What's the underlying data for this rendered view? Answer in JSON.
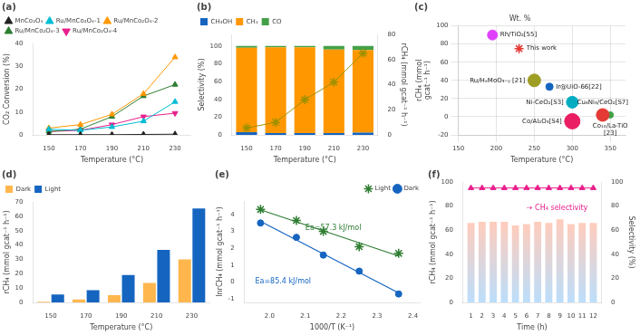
{
  "chart_data": [
    {
      "type": "line",
      "title": "(a)",
      "xlabel": "Temperature (°C)",
      "ylabel": "CO₂ Conversion (%)",
      "x": [
        150,
        170,
        190,
        210,
        230
      ],
      "series": [
        {
          "name": "MnCo₂O₄",
          "color": "#222222",
          "marker": "triangle",
          "values": [
            0.1,
            0.1,
            0.1,
            0.2,
            0.3
          ]
        },
        {
          "name": "Ru/MnCo₂O₄-1",
          "color": "#00bcd4",
          "marker": "triangle",
          "values": [
            2.5,
            2.0,
            3.5,
            6.0,
            14.5
          ]
        },
        {
          "name": "Ru/MnCo₂O₄-2",
          "color": "#ff9800",
          "marker": "triangle",
          "values": [
            3.0,
            4.5,
            9.0,
            18.0,
            34.0
          ]
        },
        {
          "name": "Ru/MnCo₂O₄-3",
          "color": "#2e7d32",
          "marker": "triangle",
          "values": [
            1.5,
            2.5,
            8.0,
            17.0,
            22.0
          ]
        },
        {
          "name": "Ru/MnCo₂O₄-4",
          "color": "#e91e8c",
          "marker": "triangle-down",
          "values": [
            1.5,
            2.0,
            4.5,
            8.0,
            9.5
          ]
        }
      ],
      "xlim": [
        140,
        240
      ],
      "xticks": [
        150,
        170,
        190,
        210,
        230
      ],
      "ylim": [
        0,
        40
      ],
      "yticks": [
        0,
        10,
        20,
        30,
        40
      ],
      "grid": false,
      "legend": "upper left"
    },
    {
      "type": "bar",
      "title": "(b)",
      "xlabel": "Temperature (°C)",
      "ylabel": "Selectivity (%)",
      "y2label": "rCH₄ (mmol gcat⁻¹ h⁻¹)",
      "categories": [
        150,
        170,
        190,
        210,
        230
      ],
      "series": [
        {
          "name": "CH₃OH",
          "color": "#1565c0",
          "values": [
            3.0,
            2.0,
            2.0,
            2.0,
            2.5
          ]
        },
        {
          "name": "CH₄",
          "color": "#ff9800",
          "values": [
            95.0,
            96.5,
            96.5,
            94.0,
            93.0
          ]
        },
        {
          "name": "CO",
          "color": "#43a047",
          "values": [
            2.0,
            1.5,
            1.5,
            4.0,
            4.5
          ]
        },
        {
          "type": "line",
          "axis": "y2",
          "color": "#9e9000",
          "marker": "star",
          "values": [
            5.5,
            10.0,
            28.0,
            42.0,
            65.0
          ]
        }
      ],
      "stacked": true,
      "ylim": [
        0,
        113
      ],
      "yticks": [
        0,
        20,
        40,
        60,
        80,
        100
      ],
      "y2lim": [
        0,
        80
      ],
      "y2ticks": [
        0,
        20,
        40,
        60,
        80
      ],
      "grid": false,
      "legend": "upper left"
    },
    {
      "type": "bubble",
      "title": "(c)",
      "subtitle": "Wt. %",
      "xlabel": "Temperature (°C)",
      "ylabel": "rCH₄ (mmol\ngcat⁻¹ h⁻¹)",
      "points": [
        {
          "label": "This work",
          "x": 230,
          "y": 75,
          "size": 10,
          "color": "#e53935",
          "marker": "star"
        },
        {
          "label": "Rh/TiO₂[55]",
          "x": 195,
          "y": 90,
          "size": 11,
          "color": "#e040fb",
          "marker": "circle"
        },
        {
          "label": "Ir@UiO-66[22]",
          "x": 270,
          "y": 33,
          "size": 8,
          "color": "#1565c0",
          "marker": "circle"
        },
        {
          "label": "Ru/HₓMoO₃₋ᵧ [21]",
          "x": 250,
          "y": 40,
          "size": 14,
          "color": "#9e9d24",
          "marker": "circle"
        },
        {
          "label": "Ni-CeO₂[S3]",
          "x": 300,
          "y": 16,
          "size": 13,
          "color": "#00acc1",
          "marker": "circle"
        },
        {
          "label": "Co₁₀/La-TiO\n[23]",
          "x": 350,
          "y": 2,
          "size": 7,
          "color": "#43a047",
          "marker": "circle"
        },
        {
          "label": "Cu₆Ni₃/CeO₂[S7]",
          "x": 340,
          "y": 2,
          "size": 14,
          "color": "#e53935",
          "marker": "circle"
        },
        {
          "label": "Co/Al₂O₃[S4]",
          "x": 300,
          "y": -5,
          "size": 17,
          "color": "#e91e63",
          "marker": "circle"
        }
      ],
      "xlim": [
        150,
        370
      ],
      "xticks": [
        150,
        200,
        250,
        300,
        350
      ],
      "ylim": [
        -20,
        100
      ],
      "yticks": [
        -20,
        0,
        20,
        40,
        60,
        80,
        100
      ],
      "grid": true
    },
    {
      "type": "bar",
      "title": "(d)",
      "xlabel": "Temperature (°C)",
      "ylabel": "rCH₄ (mmol gcat⁻¹ h⁻¹)",
      "categories": [
        150,
        170,
        190,
        210,
        230
      ],
      "series": [
        {
          "name": "Dark",
          "color": "#ffb74d",
          "values": [
            0.5,
            2.0,
            5.0,
            13.5,
            30.0
          ]
        },
        {
          "name": "Light",
          "color": "#1565c0",
          "values": [
            5.5,
            8.5,
            19.0,
            36.5,
            65.5
          ]
        }
      ],
      "ylim": [
        0,
        70
      ],
      "yticks": [
        0,
        10,
        20,
        30,
        40,
        50,
        60,
        70
      ],
      "grid": false,
      "legend": "upper left"
    },
    {
      "type": "scatter",
      "title": "(e)",
      "xlabel": "1000/T (K⁻¹)",
      "ylabel": "lnrCH₄ (mmol gcat⁻¹ h⁻¹)",
      "series": [
        {
          "name": "Light",
          "color": "#2e7d32",
          "marker": "star",
          "x": [
            1.975,
            2.075,
            2.15,
            2.25,
            2.36
          ],
          "values": [
            4.3,
            3.65,
            3.0,
            2.1,
            1.7
          ]
        },
        {
          "name": "Dark",
          "color": "#1565c0",
          "marker": "circle",
          "x": [
            1.975,
            2.075,
            2.15,
            2.25,
            2.36
          ],
          "values": [
            3.5,
            2.65,
            1.6,
            0.65,
            -0.7
          ]
        },
        {
          "type": "line",
          "color": "#2e7d32",
          "x": [
            1.975,
            2.36
          ],
          "values": [
            4.2774,
            1.5445
          ]
        },
        {
          "type": "line",
          "color": "#1565c0",
          "x": [
            1.975,
            2.36
          ],
          "values": [
            3.5964,
            -0.6374
          ]
        }
      ],
      "annotations": [
        {
          "text": "Ea=57.3 kJ/mol",
          "x": 2.1,
          "y": 3.1,
          "color": "#2e7d32"
        },
        {
          "text": "Ea=85.4 kJ/mol",
          "x": 1.96,
          "y": -0.1,
          "color": "#1565c0"
        }
      ],
      "xlim": [
        1.93,
        2.42
      ],
      "xticks": [
        {
          "value": 2,
          "label": "2.0"
        },
        2.1,
        2.2,
        2.3,
        2.4
      ],
      "ylim": [
        -1.2,
        4.8
      ],
      "yticks": [
        -1,
        0,
        1,
        2,
        3,
        4
      ],
      "grid": false,
      "legend": "upper right"
    },
    {
      "type": "bar",
      "title": "(f)",
      "xlabel": "Time (h)",
      "ylabel": "rCH₄ (mmol gcat⁻¹ h⁻¹)",
      "y2label": "Selectivity (%)",
      "x": [
        1,
        2,
        3,
        4,
        5,
        6,
        7,
        8,
        9,
        10,
        11,
        12
      ],
      "series": [
        {
          "type": "bar",
          "color": {
            "bottom": "#bbdefb",
            "top": "#ffccbc"
          },
          "values": [
            66,
            67,
            67,
            67,
            64,
            65,
            67,
            66,
            69,
            65,
            66,
            66
          ]
        },
        {
          "type": "line",
          "axis": "y2",
          "color": "#e91e8c",
          "marker": "triangle",
          "values": [
            95,
            95,
            95,
            95,
            95,
            95,
            95,
            95,
            95,
            95,
            95,
            95
          ]
        }
      ],
      "annotations": [
        {
          "text": "→ CH₄ selectivity",
          "x": 6,
          "y": 77,
          "axis": "y2",
          "color": "#e91e8c"
        }
      ],
      "xlim": [
        0.3,
        12.7
      ],
      "xticks": [
        1,
        2,
        3,
        4,
        5,
        6,
        7,
        8,
        9,
        10,
        11,
        12
      ],
      "ylim": [
        0,
        100
      ],
      "yticks": [
        0,
        20,
        40,
        60,
        80,
        100
      ],
      "y2lim": [
        0,
        100
      ],
      "y2ticks": [
        0,
        20,
        40,
        60,
        80,
        100
      ],
      "grid": false
    }
  ]
}
